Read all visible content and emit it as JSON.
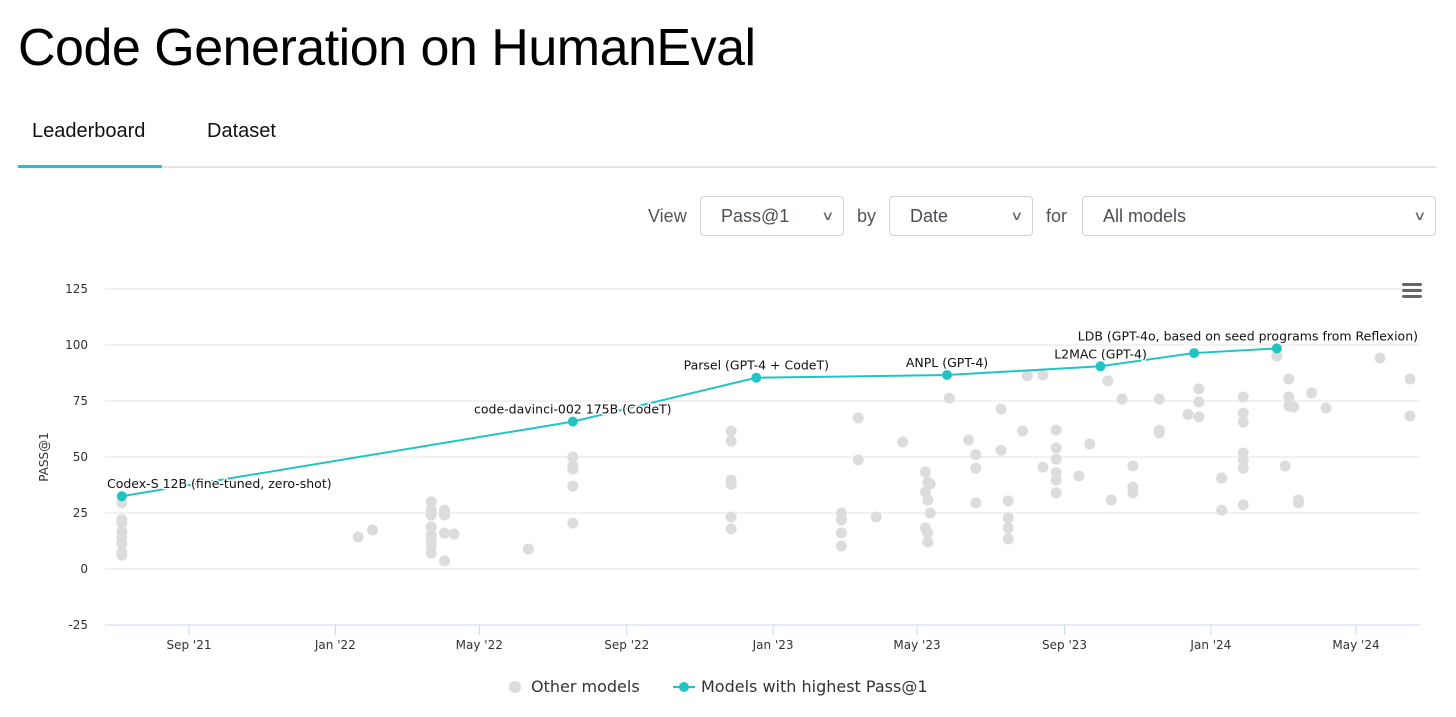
{
  "page": {
    "title": "Code Generation on HumanEval"
  },
  "tabs": [
    {
      "label": "Leaderboard",
      "active": true
    },
    {
      "label": "Dataset",
      "active": false
    }
  ],
  "controls": {
    "view_label": "View",
    "view_value": "Pass@1",
    "by_label": "by",
    "by_value": "Date",
    "for_label": "for",
    "for_value": "All models"
  },
  "icons": {
    "menu": "hamburger-menu-icon",
    "dropdown": "chevron-down-icon"
  },
  "colors": {
    "frontier": "#21c4c4",
    "other": "#dcdcdc",
    "accent": "#21c4c4"
  },
  "chart_data": {
    "type": "scatter",
    "title": "",
    "xlabel": "",
    "ylabel": "PASS@1",
    "ylim": [
      -25,
      125
    ],
    "yticks": [
      "-25",
      "0",
      "25",
      "50",
      "75",
      "100",
      "125"
    ],
    "xticks": [
      {
        "date": "2021-09-01",
        "label": "Sep '21"
      },
      {
        "date": "2022-01-01",
        "label": "Jan '22"
      },
      {
        "date": "2022-05-01",
        "label": "May '22"
      },
      {
        "date": "2022-09-01",
        "label": "Sep '22"
      },
      {
        "date": "2023-01-01",
        "label": "Jan '23"
      },
      {
        "date": "2023-05-01",
        "label": "May '23"
      },
      {
        "date": "2023-09-01",
        "label": "Sep '23"
      },
      {
        "date": "2024-01-01",
        "label": "Jan '24"
      },
      {
        "date": "2024-05-01",
        "label": "May '24"
      }
    ],
    "grid": true,
    "legend_position": "bottom",
    "series": [
      {
        "name": "Other models",
        "type": "scatter",
        "points": [
          [
            "2021-07-07",
            29.5
          ],
          [
            "2021-07-07",
            22
          ],
          [
            "2021-07-07",
            20.5
          ],
          [
            "2021-07-07",
            16.5
          ],
          [
            "2021-07-07",
            14.3
          ],
          [
            "2021-07-07",
            11.6
          ],
          [
            "2021-07-07",
            7.6
          ],
          [
            "2021-07-07",
            6.2
          ],
          [
            "2022-01-20",
            14.3
          ],
          [
            "2022-02-01",
            17.4
          ],
          [
            "2022-03-22",
            30
          ],
          [
            "2022-03-22",
            26.3
          ],
          [
            "2022-03-22",
            24.1
          ],
          [
            "2022-03-22",
            18.8
          ],
          [
            "2022-03-22",
            15.2
          ],
          [
            "2022-03-22",
            12.9
          ],
          [
            "2022-03-22",
            10.3
          ],
          [
            "2022-03-22",
            7.1
          ],
          [
            "2022-04-02",
            26.3
          ],
          [
            "2022-04-02",
            24.1
          ],
          [
            "2022-04-02",
            16
          ],
          [
            "2022-04-02",
            3.6
          ],
          [
            "2022-04-10",
            15.6
          ],
          [
            "2022-06-11",
            8.9
          ],
          [
            "2022-07-18",
            50
          ],
          [
            "2022-07-18",
            46
          ],
          [
            "2022-07-18",
            44.6
          ],
          [
            "2022-07-18",
            37
          ],
          [
            "2022-07-18",
            20.5
          ],
          [
            "2022-11-27",
            61.6
          ],
          [
            "2022-11-27",
            57.1
          ],
          [
            "2022-11-27",
            39.7
          ],
          [
            "2022-11-27",
            37.9
          ],
          [
            "2022-11-27",
            23.2
          ],
          [
            "2022-11-27",
            17.9
          ],
          [
            "2023-02-27",
            25
          ],
          [
            "2023-02-27",
            21.9
          ],
          [
            "2023-02-27",
            16.1
          ],
          [
            "2023-02-27",
            10.3
          ],
          [
            "2023-03-13",
            67.4
          ],
          [
            "2023-03-13",
            48.7
          ],
          [
            "2023-03-28",
            23.2
          ],
          [
            "2023-04-19",
            56.7
          ],
          [
            "2023-05-08",
            43.3
          ],
          [
            "2023-05-10",
            38.8
          ],
          [
            "2023-05-12",
            38
          ],
          [
            "2023-05-08",
            34.4
          ],
          [
            "2023-05-10",
            30.8
          ],
          [
            "2023-05-12",
            25
          ],
          [
            "2023-05-08",
            18.3
          ],
          [
            "2023-05-10",
            16
          ],
          [
            "2023-05-10",
            12
          ],
          [
            "2023-05-28",
            76.3
          ],
          [
            "2023-06-13",
            57.6
          ],
          [
            "2023-06-19",
            51
          ],
          [
            "2023-06-19",
            45
          ],
          [
            "2023-06-19",
            29.5
          ],
          [
            "2023-07-10",
            71.4
          ],
          [
            "2023-07-10",
            53
          ],
          [
            "2023-07-16",
            30.4
          ],
          [
            "2023-07-16",
            22.8
          ],
          [
            "2023-07-16",
            18.3
          ],
          [
            "2023-07-16",
            13.4
          ],
          [
            "2023-07-28",
            61.6
          ],
          [
            "2023-08-01",
            86.2
          ],
          [
            "2023-08-14",
            86.6
          ],
          [
            "2023-08-14",
            45.5
          ],
          [
            "2023-08-25",
            62
          ],
          [
            "2023-08-25",
            54
          ],
          [
            "2023-08-25",
            49
          ],
          [
            "2023-08-25",
            43
          ],
          [
            "2023-08-25",
            39.7
          ],
          [
            "2023-08-25",
            34
          ],
          [
            "2023-09-13",
            41.5
          ],
          [
            "2023-09-22",
            55.8
          ],
          [
            "2023-10-07",
            84
          ],
          [
            "2023-10-10",
            30.8
          ],
          [
            "2023-10-19",
            75.9
          ],
          [
            "2023-10-28",
            46
          ],
          [
            "2023-10-28",
            36.6
          ],
          [
            "2023-10-28",
            34
          ],
          [
            "2023-11-19",
            75.9
          ],
          [
            "2023-11-19",
            62
          ],
          [
            "2023-11-19",
            60.7
          ],
          [
            "2023-12-13",
            69
          ],
          [
            "2023-12-22",
            80.4
          ],
          [
            "2023-12-22",
            74.6
          ],
          [
            "2023-12-22",
            67.9
          ],
          [
            "2024-01-10",
            40.6
          ],
          [
            "2024-01-10",
            26.3
          ],
          [
            "2024-01-28",
            76.8
          ],
          [
            "2024-01-28",
            69.6
          ],
          [
            "2024-01-28",
            65.6
          ],
          [
            "2024-01-28",
            51.8
          ],
          [
            "2024-01-28",
            48.7
          ],
          [
            "2024-01-28",
            45
          ],
          [
            "2024-01-28",
            28.6
          ],
          [
            "2024-02-25",
            95
          ],
          [
            "2024-03-03",
            46
          ],
          [
            "2024-03-06",
            84.8
          ],
          [
            "2024-03-06",
            76.8
          ],
          [
            "2024-03-06",
            72.8
          ],
          [
            "2024-03-10",
            72.3
          ],
          [
            "2024-03-14",
            30.8
          ],
          [
            "2024-03-14",
            29.5
          ],
          [
            "2024-03-25",
            78.6
          ],
          [
            "2024-04-06",
            71.9
          ],
          [
            "2024-05-21",
            94.2
          ],
          [
            "2024-06-15",
            84.8
          ],
          [
            "2024-06-15",
            68.3
          ]
        ]
      },
      {
        "name": "Models with highest Pass@1",
        "type": "line",
        "points": [
          {
            "date": "2021-07-07",
            "value": 32.5,
            "label": "Codex-S 12B (fine-tuned, zero-shot)"
          },
          {
            "date": "2022-07-18",
            "value": 65.8,
            "label": "code-davinci-002 175B (CodeT)"
          },
          {
            "date": "2022-12-18",
            "value": 85.4,
            "label": "Parsel (GPT-4 + CodeT)"
          },
          {
            "date": "2023-05-26",
            "value": 86.6,
            "label": "ANPL (GPT-4)"
          },
          {
            "date": "2023-10-01",
            "value": 90.5,
            "label": "L2MAC (GPT-4)"
          },
          {
            "date": "2023-12-18",
            "value": 96.4,
            "label": ""
          },
          {
            "date": "2024-02-25",
            "value": 98.5,
            "label": "LDB (GPT-4o, based on seed programs from Reflexion)"
          }
        ]
      }
    ]
  }
}
